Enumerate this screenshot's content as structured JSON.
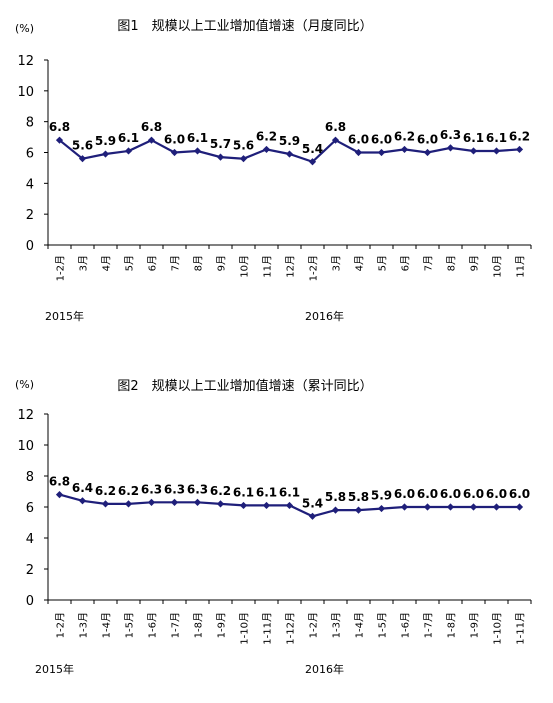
{
  "chart_data": [
    {
      "type": "line",
      "title": "图1　规模以上工业增加值增速（月度同比）",
      "ylabel": "(%)",
      "ylim": [
        0,
        12
      ],
      "yticks": [
        0,
        2,
        4,
        6,
        8,
        10,
        12
      ],
      "grid": false,
      "color": "#1f1f7a",
      "categories": [
        "1-2月",
        "3月",
        "4月",
        "5月",
        "6月",
        "7月",
        "8月",
        "9月",
        "10月",
        "11月",
        "12月",
        "1-2月",
        "3月",
        "4月",
        "5月",
        "6月",
        "7月",
        "8月",
        "9月",
        "10月",
        "11月"
      ],
      "years": [
        {
          "label": "2015年",
          "start": 0,
          "end": 10
        },
        {
          "label": "2016年",
          "start": 11,
          "end": 20
        }
      ],
      "series": [
        {
          "values": [
            6.8,
            5.6,
            5.9,
            6.1,
            6.8,
            6.0,
            6.1,
            5.7,
            5.6,
            6.2,
            5.9,
            5.4,
            6.8,
            6.0,
            6.0,
            6.2,
            6.0,
            6.3,
            6.1,
            6.1,
            6.2
          ],
          "labels": [
            "6.8",
            "5.6",
            "5.9",
            "6.1",
            "6.8",
            "6.0",
            "6.1",
            "5.7",
            "5.6",
            "6.2",
            "5.9",
            "5.4",
            "6.8",
            "6.0",
            "6.0",
            "6.2",
            "6.0",
            "6.3",
            "6.1",
            "6.1",
            "6.2"
          ]
        }
      ]
    },
    {
      "type": "line",
      "title": "图2　规模以上工业增加值增速（累计同比）",
      "ylabel": "(%)",
      "ylim": [
        0,
        12
      ],
      "yticks": [
        0,
        2,
        4,
        6,
        8,
        10,
        12
      ],
      "grid": false,
      "color": "#1f1f7a",
      "categories": [
        "1-2月",
        "1-3月",
        "1-4月",
        "1-5月",
        "1-6月",
        "1-7月",
        "1-8月",
        "1-9月",
        "1-10月",
        "1-11月",
        "1-12月",
        "1-2月",
        "1-3月",
        "1-4月",
        "1-5月",
        "1-6月",
        "1-7月",
        "1-8月",
        "1-9月",
        "1-10月",
        "1-11月"
      ],
      "years": [
        {
          "label": "2015年",
          "start": 0,
          "end": 10
        },
        {
          "label": "2016年",
          "start": 11,
          "end": 20
        }
      ],
      "series": [
        {
          "values": [
            6.8,
            6.4,
            6.2,
            6.2,
            6.3,
            6.3,
            6.3,
            6.2,
            6.1,
            6.1,
            6.1,
            5.4,
            5.8,
            5.8,
            5.9,
            6.0,
            6.0,
            6.0,
            6.0,
            6.0,
            6.0
          ],
          "labels": [
            "6.8",
            "6.4",
            "6.2",
            "6.2",
            "6.3",
            "6.3",
            "6.3",
            "6.2",
            "6.1",
            "6.1",
            "6.1",
            "5.4",
            "5.8",
            "5.8",
            "5.9",
            "6.0",
            "6.0",
            "6.0",
            "6.0",
            "6.0",
            "6.0"
          ]
        }
      ]
    }
  ]
}
